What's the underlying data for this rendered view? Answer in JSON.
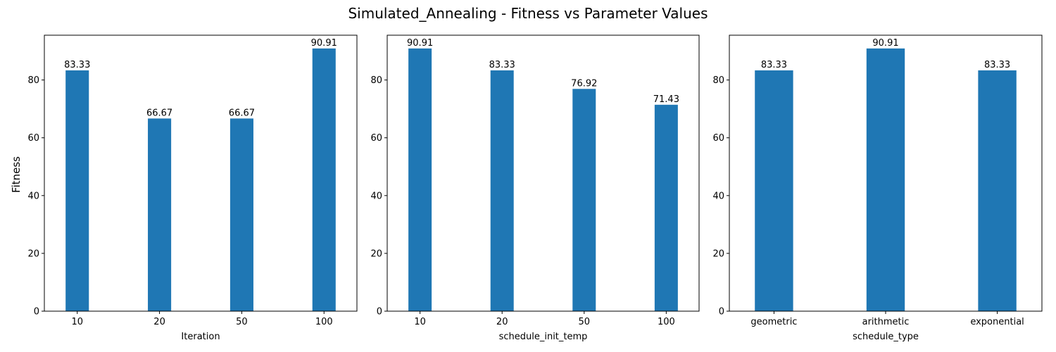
{
  "suptitle": "Simulated_Annealing - Fitness vs Parameter Values",
  "shared_ylabel": "Fitness",
  "colors": {
    "bar": "#1f77b4",
    "axes": "#000000",
    "background": "#ffffff"
  },
  "chart_data": [
    {
      "type": "bar",
      "title": "",
      "xlabel": "Iteration",
      "ylabel": "Fitness",
      "categories": [
        "10",
        "20",
        "50",
        "100"
      ],
      "values": [
        83.33,
        66.67,
        66.67,
        90.91
      ],
      "value_labels": [
        "83.33",
        "66.67",
        "66.67",
        "90.91"
      ],
      "yticks": [
        0,
        20,
        40,
        60,
        80
      ],
      "ylim": [
        0,
        95.5
      ],
      "grid": false,
      "bar_color": "#1f77b4"
    },
    {
      "type": "bar",
      "title": "",
      "xlabel": "schedule_init_temp",
      "ylabel": "",
      "categories": [
        "10",
        "20",
        "50",
        "100"
      ],
      "values": [
        90.91,
        83.33,
        76.92,
        71.43
      ],
      "value_labels": [
        "90.91",
        "83.33",
        "76.92",
        "71.43"
      ],
      "yticks": [
        0,
        20,
        40,
        60,
        80
      ],
      "ylim": [
        0,
        95.5
      ],
      "grid": false,
      "bar_color": "#1f77b4"
    },
    {
      "type": "bar",
      "title": "",
      "xlabel": "schedule_type",
      "ylabel": "",
      "categories": [
        "geometric",
        "arithmetic",
        "exponential"
      ],
      "values": [
        83.33,
        90.91,
        83.33
      ],
      "value_labels": [
        "83.33",
        "90.91",
        "83.33"
      ],
      "yticks": [
        0,
        20,
        40,
        60,
        80
      ],
      "ylim": [
        0,
        95.5
      ],
      "grid": false,
      "bar_color": "#1f77b4"
    }
  ]
}
